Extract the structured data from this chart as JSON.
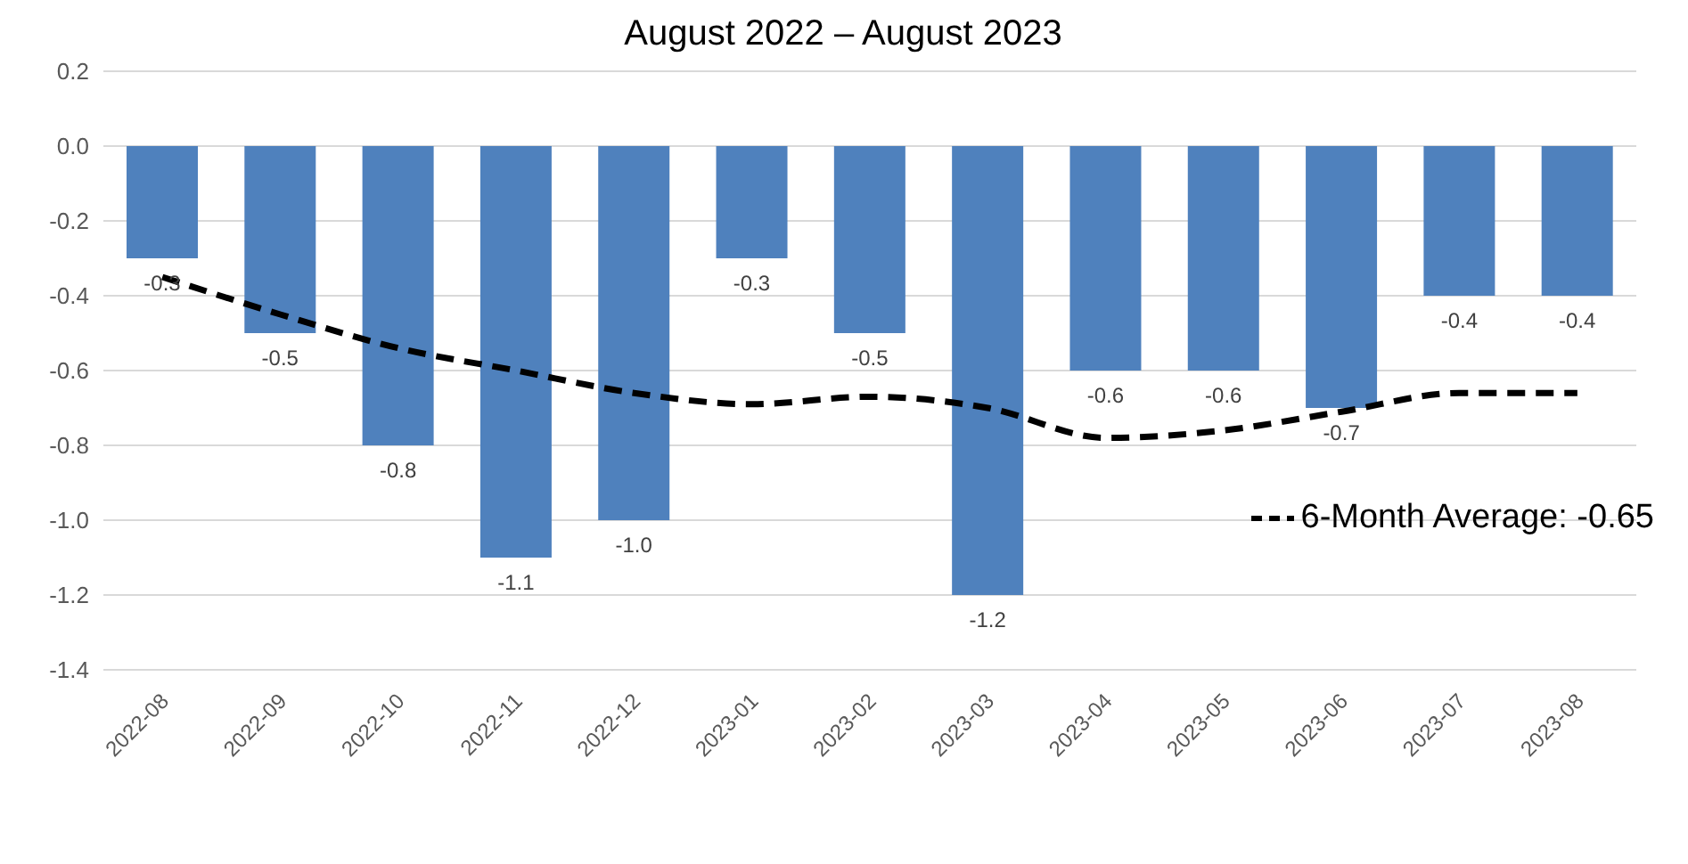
{
  "chart_data": {
    "type": "bar",
    "title": "August 2022 – August 2023",
    "categories": [
      "2022-08",
      "2022-09",
      "2022-10",
      "2022-11",
      "2022-12",
      "2023-01",
      "2023-02",
      "2023-03",
      "2023-04",
      "2023-05",
      "2023-06",
      "2023-07",
      "2023-08"
    ],
    "series": [
      {
        "color": "#4f81bd",
        "values": [
          -0.3,
          -0.5,
          -0.8,
          -1.1,
          -1.0,
          -0.3,
          -0.5,
          -1.2,
          -0.6,
          -0.6,
          -0.7,
          -0.4,
          -0.4
        ],
        "value_labels": [
          "-0.3",
          "-0.5",
          "-0.8",
          "-1.1",
          "-1.0",
          "-0.3",
          "-0.5",
          "-1.2",
          "-0.6",
          "-0.6",
          "-0.7",
          "-0.4",
          "-0.4"
        ]
      },
      {
        "type": "line",
        "name": "6-Month Average: -0.65",
        "color": "#000000",
        "line_style": "dashed",
        "marker": "none",
        "values": [
          -0.35,
          -0.45,
          -0.54,
          -0.6,
          -0.66,
          -0.69,
          -0.67,
          -0.7,
          -0.78,
          -0.76,
          -0.71,
          -0.66,
          -0.66
        ]
      }
    ],
    "ylim": [
      -1.4,
      0.2
    ],
    "yticks": [
      {
        "value": -1.4,
        "label": "-1.4"
      },
      {
        "value": -1.2,
        "label": "-1.2"
      },
      {
        "value": -1.0,
        "label": "-1.0"
      },
      {
        "value": -0.8,
        "label": "-0.8"
      },
      {
        "value": -0.6,
        "label": "-0.6"
      },
      {
        "value": -0.4,
        "label": "-0.4"
      },
      {
        "value": -0.2,
        "label": "-0.2"
      },
      {
        "value": 0,
        "label": "0.0"
      },
      {
        "value": 0.2,
        "label": "0.2"
      }
    ],
    "grid": "y",
    "legend": "right"
  }
}
